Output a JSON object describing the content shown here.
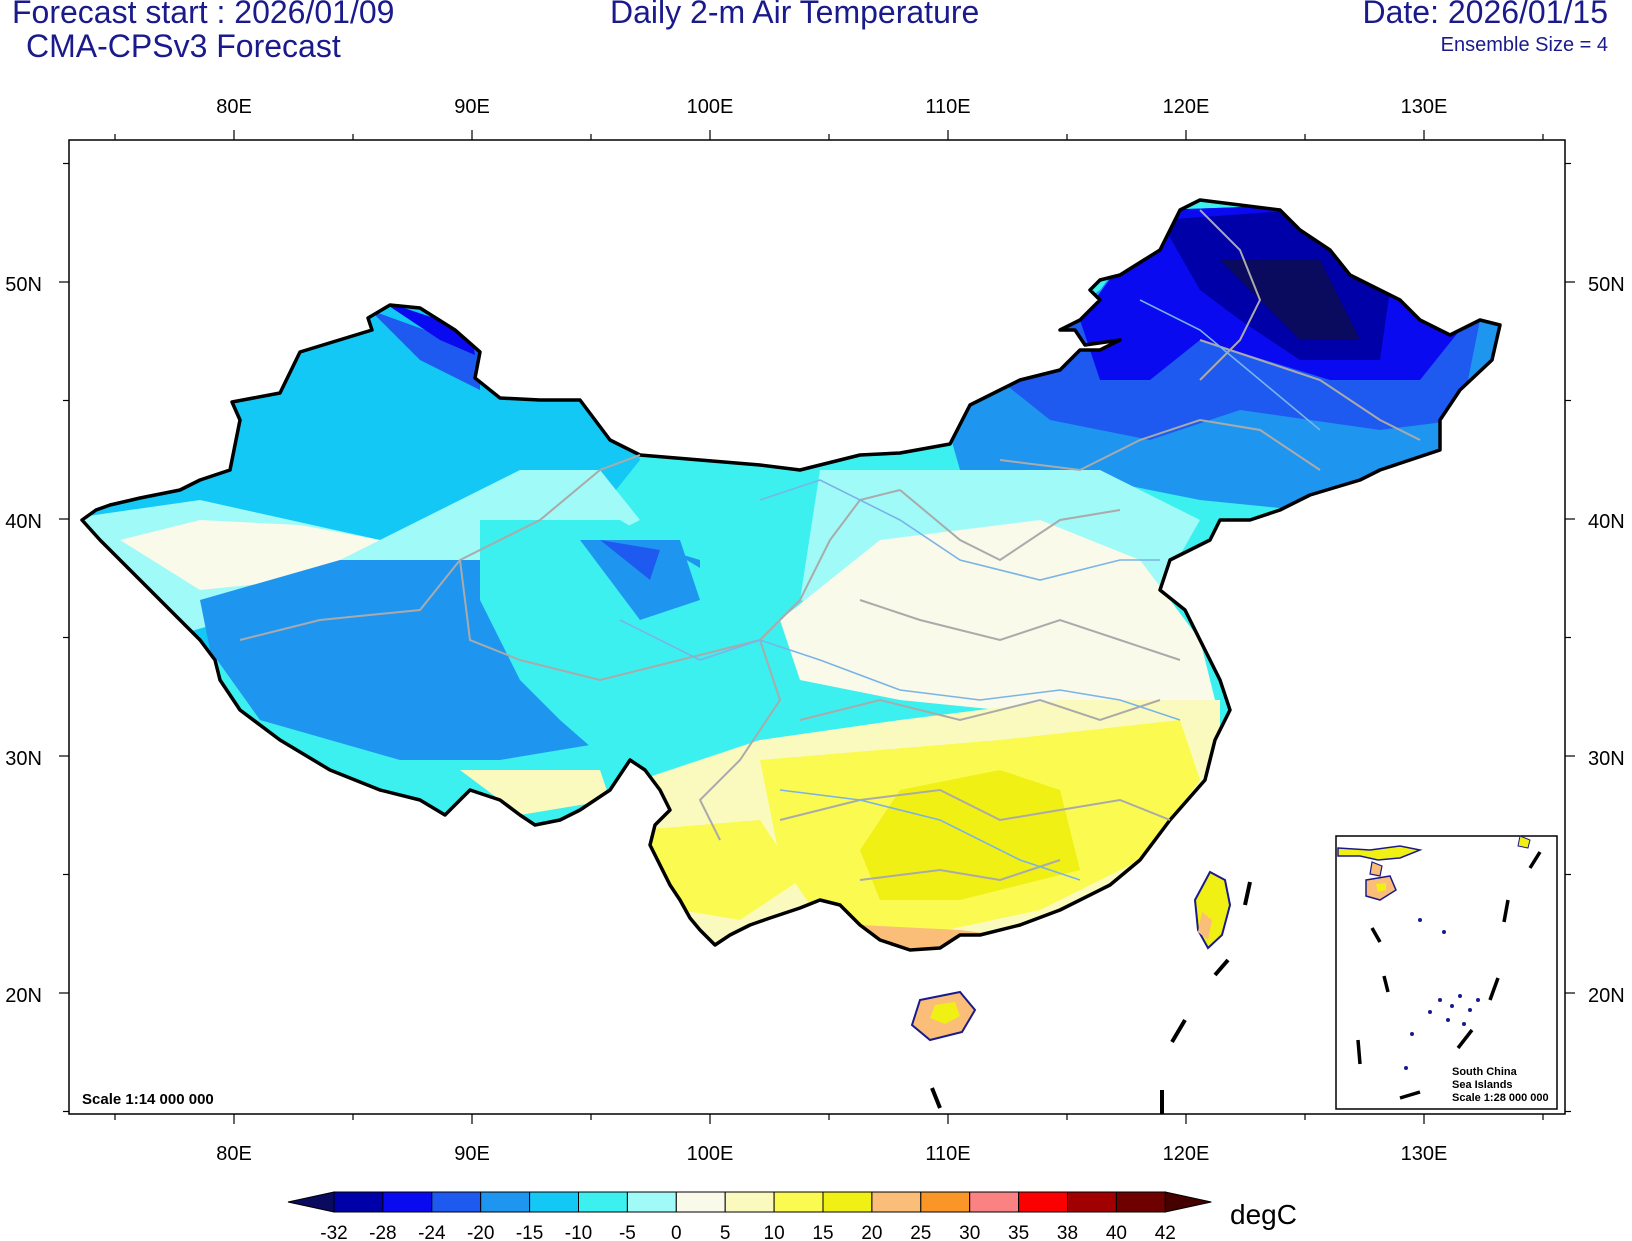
{
  "header": {
    "forecast_start": "Forecast start : 2026/01/09",
    "model": "CMA-CPSv3 Forecast",
    "title": "Daily 2-m Air Temperature",
    "date": "Date: 2026/01/15",
    "ensemble": "Ensemble Size = 4"
  },
  "map": {
    "lon_range": [
      73,
      136
    ],
    "lat_range": [
      15,
      56
    ],
    "lon_ticks": [
      "80E",
      "90E",
      "100E",
      "110E",
      "120E",
      "130E"
    ],
    "lat_ticks": [
      "50N",
      "40N",
      "30N",
      "20N"
    ],
    "scale_label": "Scale 1:14 000 000",
    "inset": {
      "title_line1": "South China",
      "title_line2": "Sea Islands",
      "scale": "Scale 1:28 000 000"
    }
  },
  "colorbar": {
    "unit": "degC",
    "levels": [
      "-32",
      "-28",
      "-24",
      "-20",
      "-15",
      "-10",
      "-5",
      "0",
      "5",
      "10",
      "15",
      "20",
      "25",
      "30",
      "35",
      "38",
      "40",
      "42"
    ],
    "colors": [
      "#0a0a5e",
      "#0000a8",
      "#0a0af0",
      "#1e5af0",
      "#1e96f0",
      "#14c8f5",
      "#3cf0f0",
      "#a0faf8",
      "#fafaea",
      "#fafabe",
      "#fafa50",
      "#f0f014",
      "#fabe78",
      "#fa9628",
      "#fa8282",
      "#fa0000",
      "#a00000",
      "#6e0000",
      "#460000"
    ]
  }
}
